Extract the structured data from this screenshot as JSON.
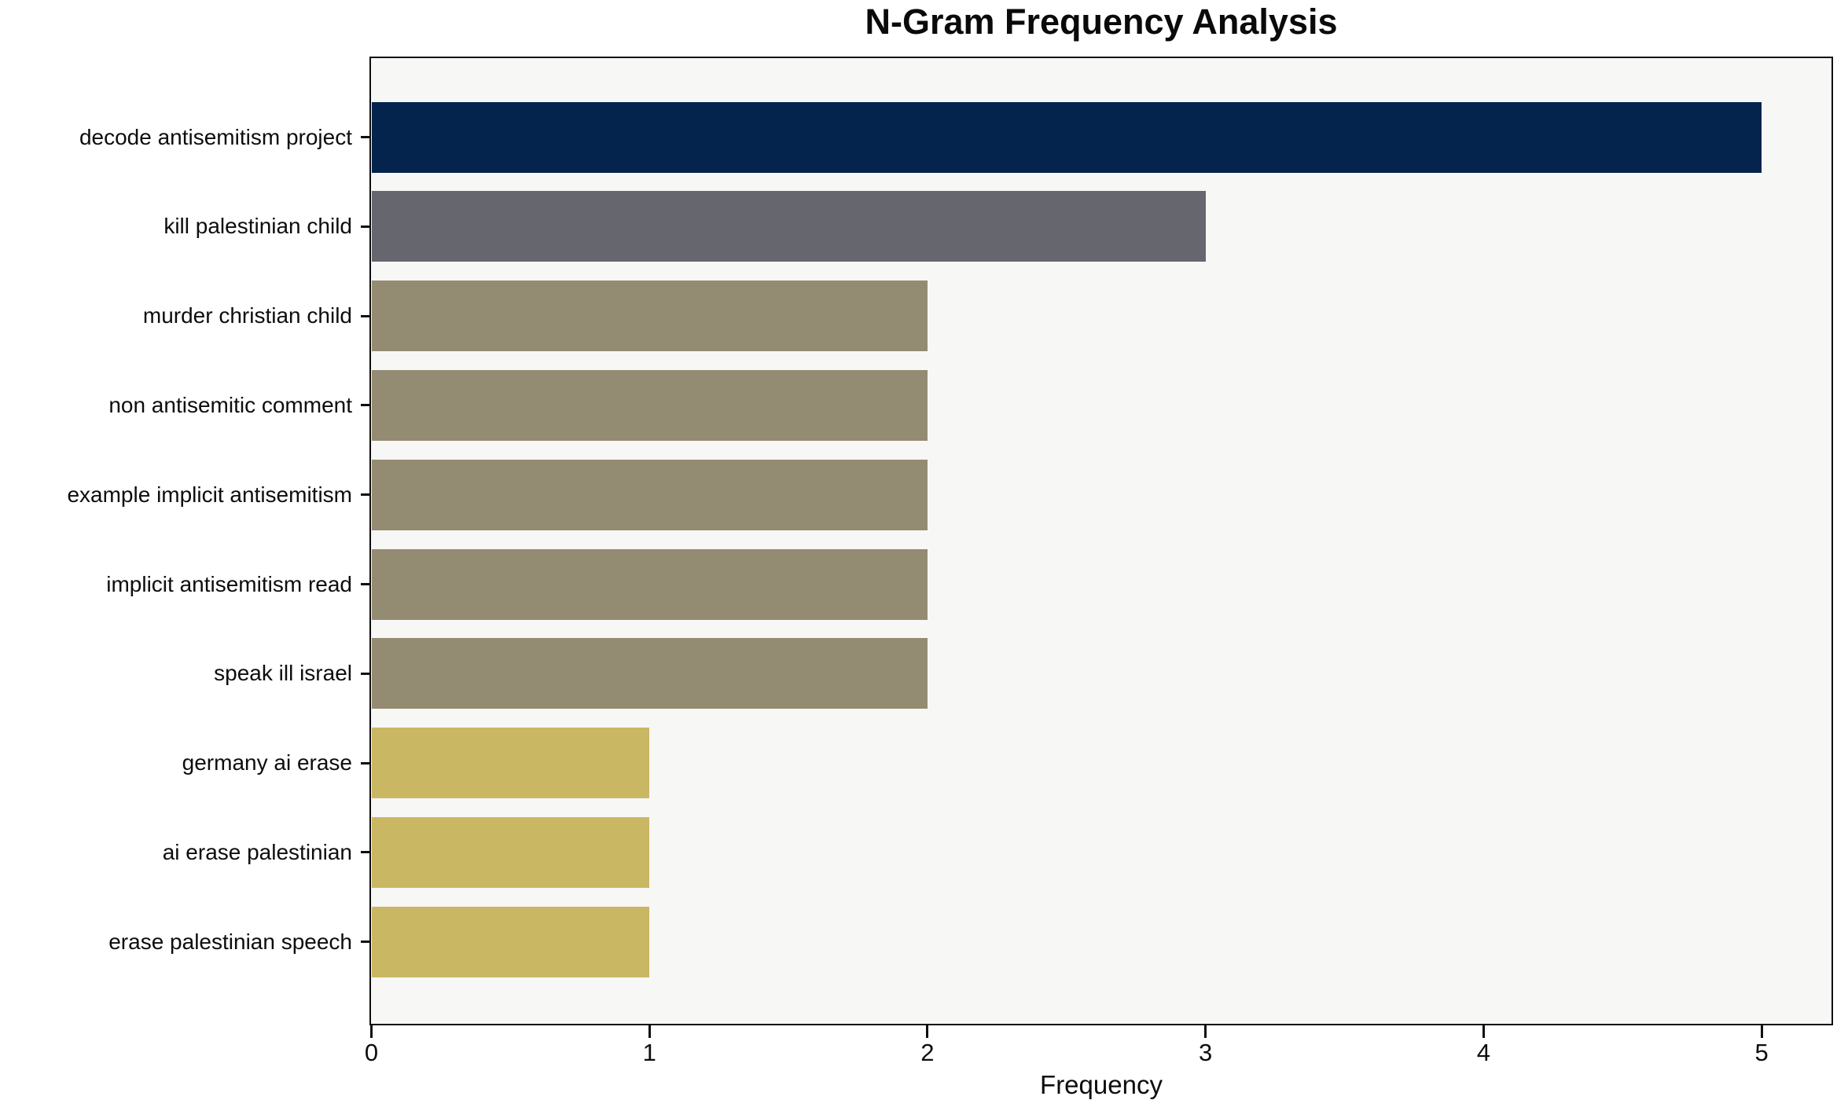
{
  "chart_data": {
    "type": "bar",
    "orientation": "horizontal",
    "title": "N-Gram Frequency Analysis",
    "xlabel": "Frequency",
    "ylabel": "",
    "categories": [
      "decode antisemitism project",
      "kill palestinian child",
      "murder christian child",
      "non antisemitic comment",
      "example implicit antisemitism",
      "implicit antisemitism read",
      "speak ill israel",
      "germany ai erase",
      "ai erase palestinian",
      "erase palestinian speech"
    ],
    "values": [
      5,
      3,
      2,
      2,
      2,
      2,
      2,
      1,
      1,
      1
    ],
    "bar_colors": [
      "#04234d",
      "#66676e",
      "#948c72",
      "#948c72",
      "#948c72",
      "#948c72",
      "#948c72",
      "#cab764",
      "#cab764",
      "#cab764"
    ],
    "x_ticks": [
      0,
      1,
      2,
      3,
      4,
      5
    ],
    "xlim": [
      0,
      5.25
    ],
    "grid": false,
    "legend_position": "none",
    "plot_background": "#f7f7f6",
    "outer_background": "#ffffff",
    "axis_color": "#0f0f0f"
  }
}
